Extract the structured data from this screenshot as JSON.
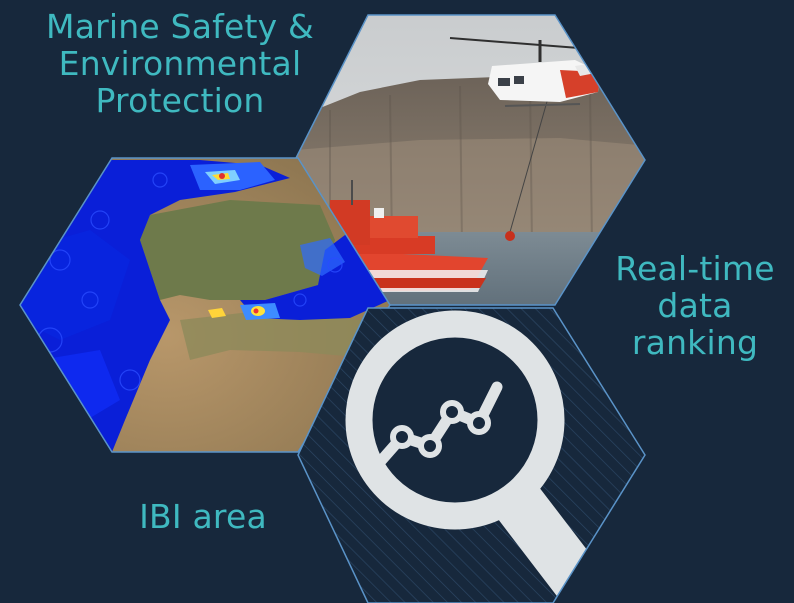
{
  "captions": {
    "marine_safety": "Marine Safety &\nEnvironmental\nProtection",
    "realtime": "Real-time\ndata\nranking",
    "ibi_area": "IBI area"
  },
  "icons": [
    "magnifier-chart-icon",
    "trend-line-icon"
  ],
  "colors": {
    "background": "#17283c",
    "caption": "#3fb9c0",
    "hex_border": "#5a93c8",
    "magnifier": "#dfe3e5",
    "ocean_field": "#0a1fd8",
    "land": "#a88a5c"
  }
}
